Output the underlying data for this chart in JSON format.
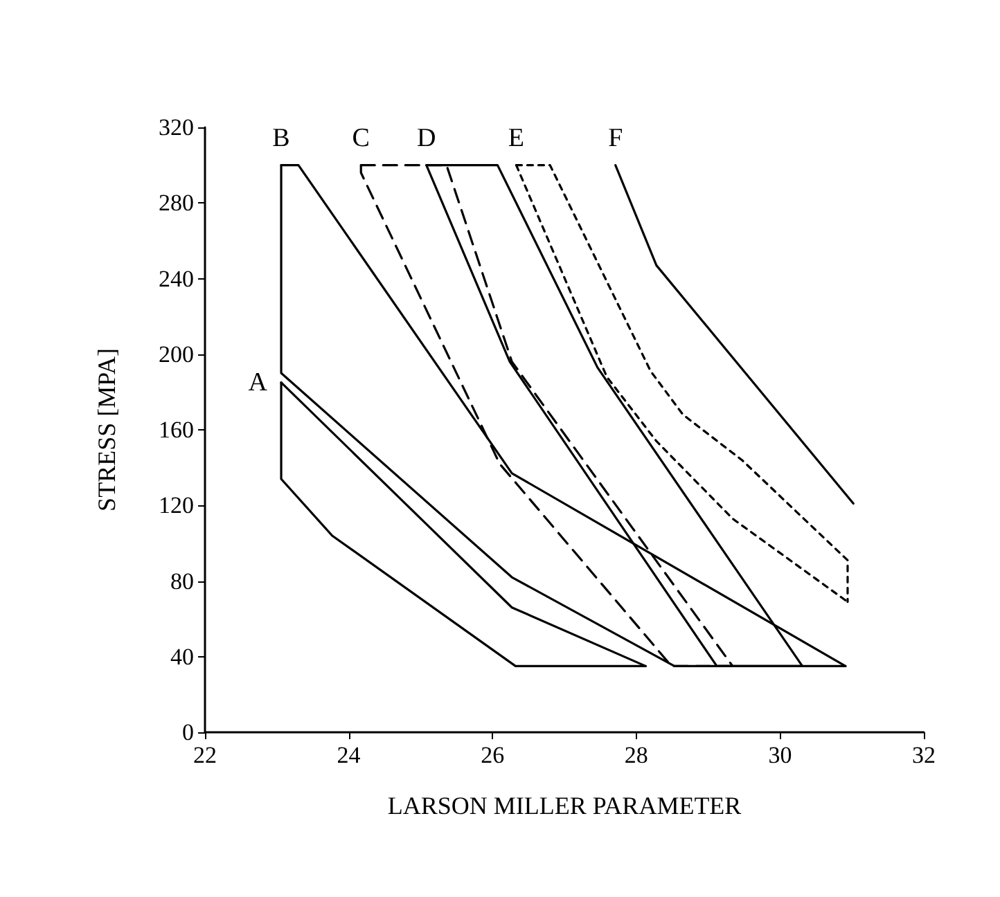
{
  "chart_data": {
    "type": "line",
    "xlabel": "LARSON MILLER PARAMETER",
    "ylabel": "STRESS [MPA]",
    "xlim": [
      22,
      32
    ],
    "xticks": [
      22,
      24,
      26,
      28,
      30,
      32
    ],
    "ylim": [
      0,
      320
    ],
    "yticks": [
      0,
      40,
      80,
      120,
      160,
      200,
      240,
      280,
      320
    ],
    "grid": false,
    "marker": "none",
    "series": [
      {
        "name": "A",
        "color": "#000000",
        "line_style": "solid",
        "x": [
          23.06,
          26.27,
          28.13
        ],
        "values": [
          185,
          66,
          35
        ]
      },
      {
        "color": "#000000",
        "line_style": "solid",
        "x": [
          23.06,
          23.06,
          23.77,
          26.32,
          28.13
        ],
        "values": [
          185,
          134,
          104,
          35,
          35
        ]
      },
      {
        "name": "B",
        "color": "#000000",
        "line_style": "solid",
        "x": [
          23.06,
          23.3,
          26.27,
          30.91
        ],
        "values": [
          300,
          300,
          137,
          35
        ]
      },
      {
        "color": "#000000",
        "line_style": "solid",
        "x": [
          23.06,
          23.06,
          26.27,
          28.53,
          30.91
        ],
        "values": [
          300,
          190,
          82,
          35,
          35
        ]
      },
      {
        "name": "C",
        "color": "#000000",
        "line_style": "dashed",
        "x": [
          24.17,
          25.36,
          26.27,
          29.34
        ],
        "values": [
          300,
          300,
          196,
          35
        ]
      },
      {
        "color": "#000000",
        "line_style": "dashed",
        "x": [
          24.17,
          24.17,
          26.1,
          28.49,
          29.34
        ],
        "values": [
          300,
          296,
          142,
          35,
          35
        ]
      },
      {
        "name": "D",
        "color": "#000000",
        "line_style": "solid",
        "x": [
          25.08,
          26.07,
          27.46,
          30.31
        ],
        "values": [
          300,
          300,
          193,
          35
        ]
      },
      {
        "color": "#000000",
        "line_style": "solid",
        "x": [
          25.08,
          26.24,
          29.12,
          30.31
        ],
        "values": [
          300,
          196,
          35,
          35
        ]
      },
      {
        "name": "E",
        "color": "#000000",
        "line_style": "dotted",
        "x": [
          26.33,
          26.8,
          28.2,
          28.65,
          29.47,
          30.94,
          30.94
        ],
        "values": [
          300,
          300,
          191,
          168,
          144,
          91,
          69
        ]
      },
      {
        "color": "#000000",
        "line_style": "dotted",
        "x": [
          26.33,
          27.59,
          28.28,
          29.34,
          30.94
        ],
        "values": [
          300,
          188,
          154,
          113,
          69
        ]
      },
      {
        "name": "F",
        "color": "#000000",
        "line_style": "solid",
        "x": [
          27.71,
          28.28,
          31.02
        ],
        "values": [
          300,
          247,
          121
        ]
      }
    ]
  }
}
